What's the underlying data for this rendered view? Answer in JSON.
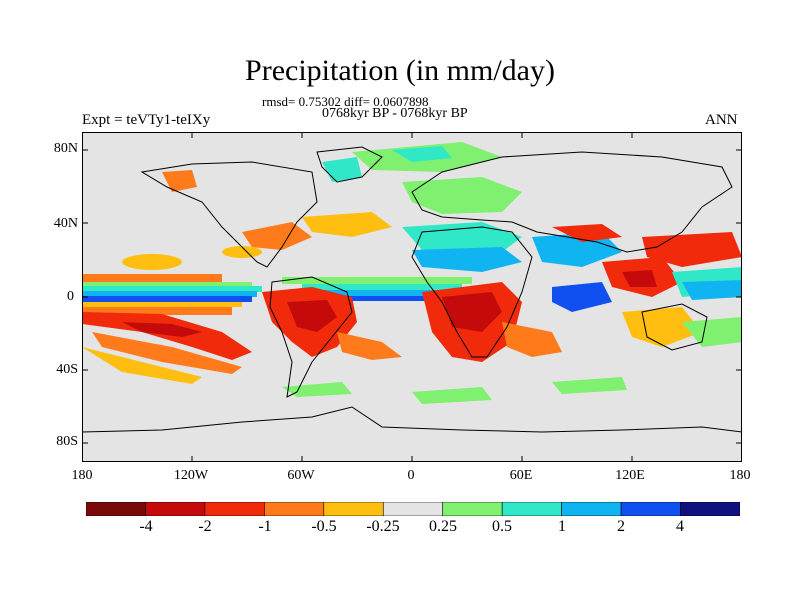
{
  "header": {
    "title": "Precipitation (in mm/day)",
    "stats": "rmsd= 0.75302  diff= 0.0607898",
    "period": "0768kyr BP - 0768kyr BP",
    "experiment": "Expt = teVTy1-teIXy",
    "season": "ANN"
  },
  "axes": {
    "lat_ticks": [
      "80N",
      "40N",
      "0",
      "40S",
      "80S"
    ],
    "lon_ticks": [
      "180",
      "120W",
      "60W",
      "0",
      "60E",
      "120E",
      "180"
    ]
  },
  "colorbar": {
    "labels": [
      "-4",
      "-2",
      "-1",
      "-0.5",
      "-0.25",
      "0.25",
      "0.5",
      "1",
      "2",
      "4"
    ],
    "colors": [
      "#7a0a0a",
      "#c40a0a",
      "#f02a0a",
      "#ff7a1a",
      "#ffbe10",
      "#e4e4e4",
      "#80f070",
      "#30e8c8",
      "#10b4f0",
      "#1050f0",
      "#101080"
    ]
  },
  "map": {
    "background_color": "#e4e4e4",
    "coastline_color": "#000000"
  }
}
